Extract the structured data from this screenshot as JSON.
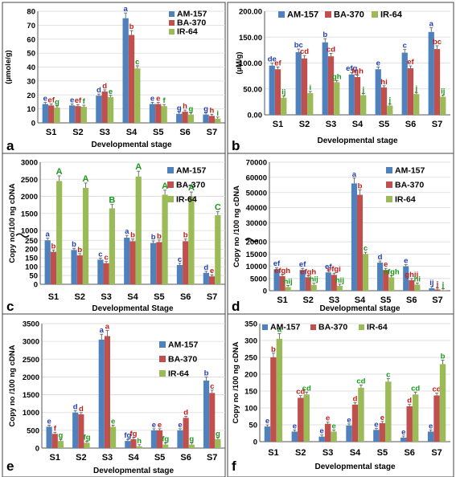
{
  "colors": {
    "AM-157": "#4f81bd",
    "BA-370": "#c0504d",
    "IR-64": "#9bbb59",
    "letter_blue": "#1f3fb5",
    "letter_red": "#c0201a",
    "letter_green": "#1a9a1a",
    "grid": "#d9d9d9",
    "axis": "#555555"
  },
  "chart_data": [
    {
      "panel": "a",
      "type": "bar",
      "categories": [
        "S1",
        "S2",
        "S3",
        "S4",
        "S5",
        "S6",
        "S7"
      ],
      "xlabel": "Developmental stage",
      "ylabel": "(µmole/g)",
      "ylim": [
        0,
        80
      ],
      "yticks": [
        "0",
        "10",
        "20",
        "30",
        "40",
        "50",
        "60",
        "70",
        "80"
      ],
      "legend_position": "top-right",
      "grid": true,
      "series": [
        {
          "name": "AM-157",
          "values": [
            13.5,
            12.5,
            19.5,
            75,
            13.5,
            6.5,
            6
          ],
          "letters": [
            "e",
            "e",
            "d",
            "a",
            "e",
            "g",
            "g"
          ]
        },
        {
          "name": "BA-370",
          "values": [
            12.5,
            12,
            22.5,
            63,
            13.5,
            8,
            5
          ],
          "letters": [
            "ef",
            "ef",
            "d",
            "b",
            "e",
            "h",
            "h"
          ]
        },
        {
          "name": "IR-64",
          "values": [
            11,
            11.5,
            18.5,
            39,
            12,
            6,
            3
          ],
          "letters": [
            "g",
            "f",
            "e",
            "c",
            "f",
            "g",
            "i"
          ]
        }
      ]
    },
    {
      "panel": "b",
      "type": "bar",
      "categories": [
        "S1",
        "S2",
        "S3",
        "S4",
        "S5",
        "S6",
        "S7"
      ],
      "xlabel": "Developmental stage",
      "ylabel": "(µM/g)",
      "ylim": [
        0,
        200
      ],
      "yticks": [
        "0.00",
        "50.00",
        "100.00",
        "150.00",
        "200.00"
      ],
      "legend_position": "top",
      "grid": true,
      "series": [
        {
          "name": "AM-157",
          "values": [
            95,
            121,
            140,
            78,
            88,
            120,
            160
          ],
          "letters": [
            "de",
            "bc",
            "b",
            "efg",
            "e",
            "c",
            "a"
          ]
        },
        {
          "name": "BA-370",
          "values": [
            88,
            109,
            113,
            73,
            53,
            90,
            127
          ],
          "letters": [
            "ef",
            "cd",
            "cd",
            "fgh",
            "hi",
            "ef",
            "bc"
          ]
        },
        {
          "name": "IR-64",
          "values": [
            33,
            42,
            63,
            38,
            18,
            40,
            35
          ],
          "letters": [
            "ij",
            "i",
            "gh",
            "j",
            "j",
            "j",
            "ij"
          ]
        }
      ]
    },
    {
      "panel": "c",
      "type": "bar",
      "categories": [
        "S1",
        "S2",
        "S3",
        "S4",
        "S5",
        "S6",
        "S7"
      ],
      "xlabel": "Developmental Stage",
      "ylabel": "Copy no/100 ng cDNA",
      "ylim": [
        0,
        3000
      ],
      "yticks": [
        "0",
        "50",
        "100",
        "150",
        "200",
        "250",
        "1000",
        "1500",
        "2000",
        "2500",
        "3000"
      ],
      "axis_break": true,
      "legend_position": "top-right",
      "grid": true,
      "series": [
        {
          "name": "AM-157",
          "values": [
            250,
            195,
            140,
            265,
            235,
            110,
            65
          ],
          "letters": [
            "a",
            "b",
            "c",
            "a",
            "b",
            "c",
            "d"
          ]
        },
        {
          "name": "BA-370",
          "values": [
            185,
            165,
            120,
            245,
            240,
            245,
            45
          ],
          "letters": [
            "b",
            "b",
            "c",
            "b",
            "b",
            "b",
            "e"
          ]
        },
        {
          "name": "IR-64",
          "values": [
            2450,
            2250,
            1650,
            2580,
            2050,
            2000,
            1450
          ],
          "letters": [
            "A",
            "A",
            "B",
            "A",
            "A",
            "A",
            "C"
          ]
        }
      ]
    },
    {
      "panel": "d",
      "type": "bar",
      "categories": [
        "S1",
        "S2",
        "S3",
        "S4",
        "S5",
        "S6",
        "S7"
      ],
      "xlabel": "Developmental stage",
      "ylabel": "Copy no /100 ng cDNA",
      "ylim": [
        0,
        70000
      ],
      "yticks": [
        "0",
        "5000",
        "10000",
        "15000",
        "20000",
        "30000",
        "40000",
        "50000",
        "60000",
        "70000"
      ],
      "axis_break": true,
      "legend_position": "top-right",
      "grid": true,
      "series": [
        {
          "name": "AM-157",
          "values": [
            8800,
            8500,
            7500,
            56000,
            11500,
            10000,
            1000
          ],
          "letters": [
            "ef",
            "ef",
            "ef",
            "a",
            "d",
            "e",
            "ij"
          ]
        },
        {
          "name": "BA-370",
          "values": [
            6000,
            5500,
            6500,
            48500,
            8500,
            4300,
            500
          ],
          "letters": [
            "efgh",
            "efgh",
            "efgi",
            "b",
            "e",
            "ghij",
            "j"
          ]
        },
        {
          "name": "IR-64",
          "values": [
            1500,
            2400,
            2000,
            15000,
            5500,
            2500,
            200
          ],
          "letters": [
            "hij",
            "hij",
            "hij",
            "c",
            "efgh",
            "hi",
            "j"
          ]
        }
      ]
    },
    {
      "panel": "e",
      "type": "bar",
      "categories": [
        "S1",
        "S2",
        "S3",
        "S4",
        "S5",
        "S6",
        "S7"
      ],
      "xlabel": "Developmental stage",
      "ylabel": "Copy no /100 ng cDNA",
      "ylim": [
        0,
        3500
      ],
      "yticks": [
        "0",
        "500",
        "1000",
        "1500",
        "2000",
        "2500",
        "3000",
        "3500"
      ],
      "legend_position": "top-right",
      "grid": true,
      "series": [
        {
          "name": "AM-157",
          "values": [
            600,
            1000,
            3050,
            200,
            500,
            500,
            1900
          ],
          "letters": [
            "e",
            "d",
            "a",
            "fg",
            "e",
            "e",
            "b"
          ]
        },
        {
          "name": "BA-370",
          "values": [
            400,
            950,
            3150,
            250,
            500,
            850,
            1550
          ],
          "letters": [
            "f",
            "d",
            "a",
            "fg",
            "e",
            "d",
            "c"
          ]
        },
        {
          "name": "IR-64",
          "values": [
            200,
            150,
            600,
            50,
            100,
            100,
            250
          ],
          "letters": [
            "g",
            "fg",
            "e",
            "h",
            "fg",
            "g",
            "g"
          ]
        }
      ]
    },
    {
      "panel": "f",
      "type": "bar",
      "categories": [
        "S1",
        "S2",
        "S3",
        "S4",
        "S5",
        "S6",
        "S7"
      ],
      "xlabel": "Developmental stage",
      "ylabel": "Copy no /100 ng cDNA",
      "ylim": [
        0,
        350
      ],
      "yticks": [
        "0",
        "50",
        "100",
        "150",
        "200",
        "250",
        "300",
        "350"
      ],
      "legend_position": "top",
      "grid": true,
      "series": [
        {
          "name": "AM-157",
          "values": [
            45,
            30,
            15,
            48,
            35,
            12,
            30
          ],
          "letters": [
            "e",
            "e",
            "e",
            "e",
            "e",
            "e",
            "e"
          ]
        },
        {
          "name": "BA-370",
          "values": [
            250,
            130,
            53,
            110,
            55,
            105,
            137
          ],
          "letters": [
            "b",
            "cd",
            "e",
            "d",
            "e",
            "d",
            "cd"
          ]
        },
        {
          "name": "IR-64",
          "values": [
            305,
            140,
            30,
            160,
            178,
            140,
            230
          ],
          "letters": [
            "a",
            "cd",
            "e",
            "cd",
            "c",
            "cd",
            "b"
          ]
        }
      ]
    }
  ]
}
